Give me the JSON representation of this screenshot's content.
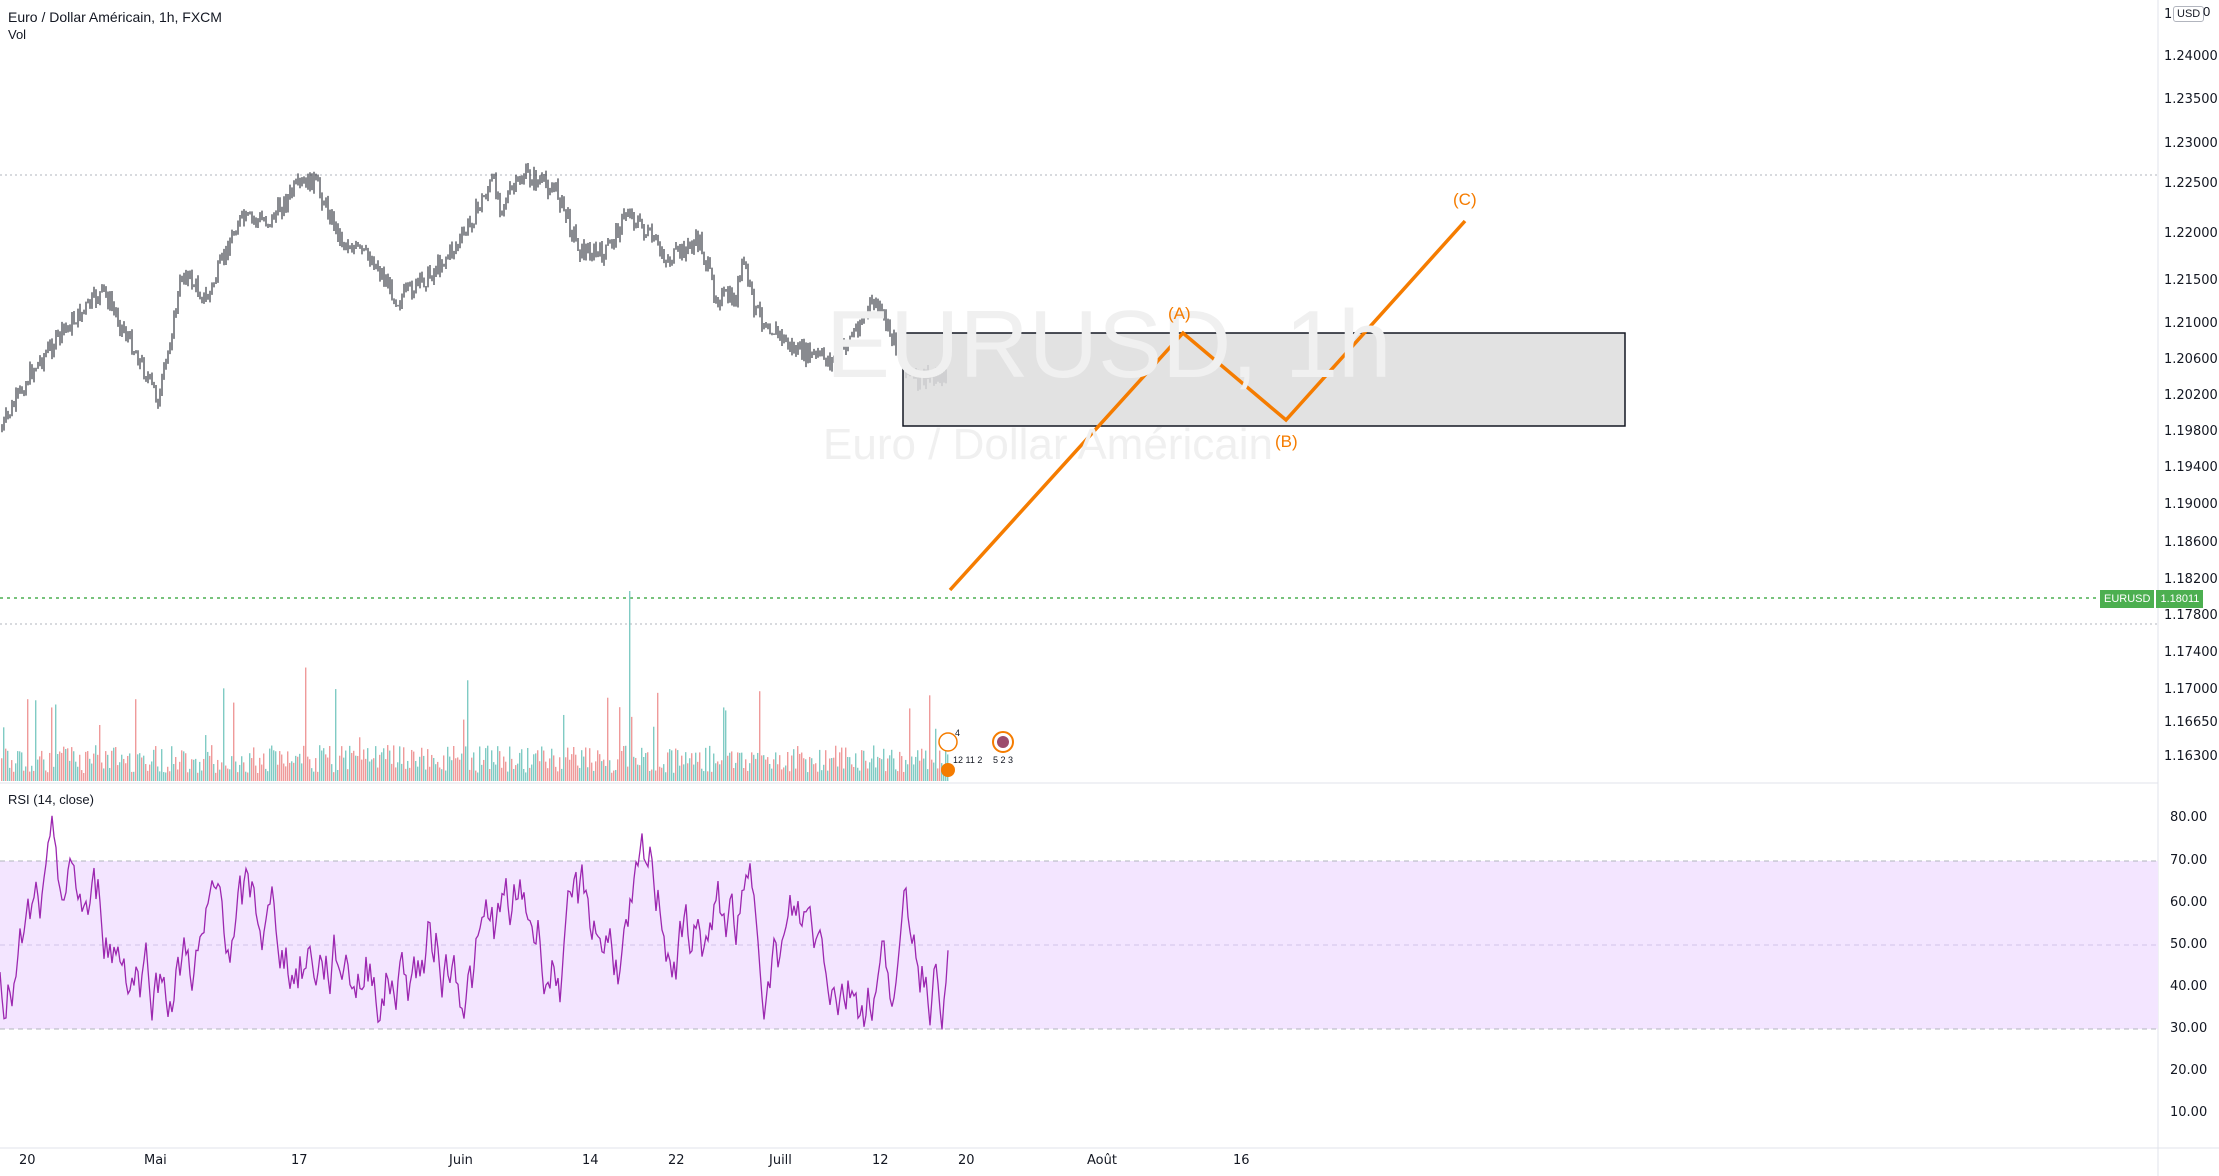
{
  "header": {
    "symbol_title": "Euro / Dollar Américain, 1h, FXCM",
    "volume_label": "Vol",
    "rsi_label": "RSI (14, close)"
  },
  "watermark": {
    "ticker": "EURUSD, 1h",
    "name": "Euro / Dollar Américain"
  },
  "price_axis": {
    "currency": "USD",
    "top_label": "1",
    "top_label_right": "0",
    "ticks": [
      "1.24000",
      "1.23500",
      "1.23000",
      "1.22500",
      "1.22000",
      "1.21500",
      "1.21000",
      "1.20600",
      "1.20200",
      "1.19800",
      "1.19400",
      "1.19000",
      "1.18600",
      "1.18200",
      "1.17800",
      "1.17400",
      "1.17000",
      "1.16650",
      "1.16300"
    ]
  },
  "rsi_axis": {
    "ticks": [
      "80.00",
      "70.00",
      "60.00",
      "50.00",
      "40.00",
      "30.00",
      "20.00",
      "10.00"
    ]
  },
  "time_axis": {
    "labels": [
      "20",
      "Mai",
      "17",
      "Juin",
      "14",
      "22",
      "Juill",
      "12",
      "20",
      "Août",
      "16"
    ]
  },
  "current_price": {
    "symbol": "EURUSD",
    "value": "1.18011"
  },
  "waves": {
    "a": "(A)",
    "b": "(B)",
    "c": "(C)"
  },
  "markers": {
    "row1": "4",
    "row2": "12 11 2",
    "row3": "5 2 3"
  },
  "colors": {
    "wave": "#f57c00",
    "rsi": "#9c27b0",
    "rsi_band": "#f3e5ff",
    "current_price": "#4caf50",
    "volume_up": "#80cbc4",
    "volume_down": "#ef9a9a",
    "candles": "#131722"
  }
}
